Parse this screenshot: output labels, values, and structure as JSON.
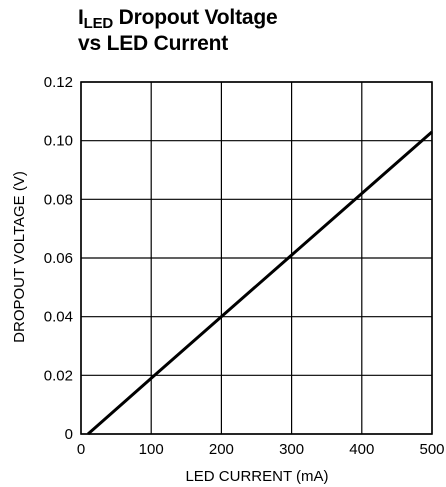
{
  "chart_data": {
    "type": "line",
    "title_main": "I",
    "title_sub": "LED",
    "title_rest": " Dropout Voltage",
    "title_line2": "vs LED Current",
    "xlabel": "LED CURRENT (mA)",
    "ylabel": "DROPOUT VOLTAGE (V)",
    "xlim": [
      0,
      500
    ],
    "ylim": [
      0,
      0.12
    ],
    "xticks": [
      "0",
      "100",
      "200",
      "300",
      "400",
      "500"
    ],
    "yticks": [
      "0",
      "0.02",
      "0.04",
      "0.06",
      "0.08",
      "0.10",
      "0.12"
    ],
    "grid": true,
    "series": [
      {
        "x": [
          10,
          100,
          200,
          300,
          400,
          500
        ],
        "y": [
          0,
          0.019,
          0.04,
          0.061,
          0.082,
          0.103
        ]
      }
    ]
  }
}
